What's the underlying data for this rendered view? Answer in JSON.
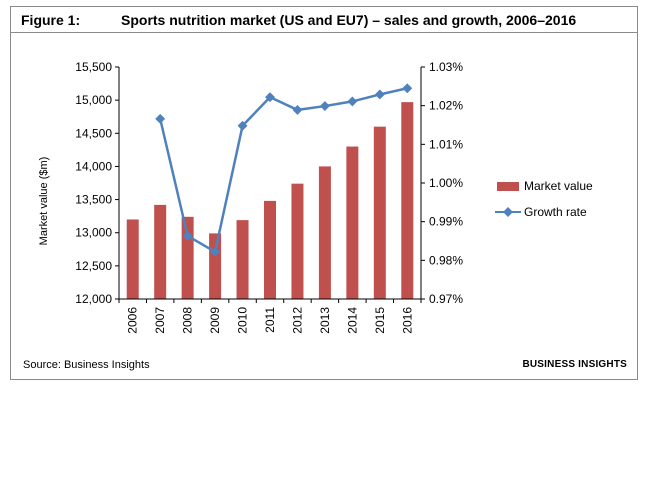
{
  "header": {
    "figure_label": "Figure 1:",
    "title": "Sports nutrition market (US and EU7) – sales and growth, 2006–2016"
  },
  "footer": {
    "source": "Source: Business Insights",
    "brand": "BUSINESS INSIGHTS"
  },
  "colors": {
    "bar": "#c0504d",
    "line": "#4f81bd",
    "grid": "#000000"
  },
  "chart_data": {
    "type": "bar",
    "title": "Sports nutrition market (US and EU7) – sales and growth, 2006–2016",
    "categories": [
      "2006",
      "2007",
      "2008",
      "2009",
      "2010",
      "2011",
      "2012",
      "2013",
      "2014",
      "2015",
      "2016"
    ],
    "ylabel": "Market value ($m)",
    "ylim": [
      12000,
      15500
    ],
    "yticks": [
      12000,
      12500,
      13000,
      13500,
      14000,
      14500,
      15000,
      15500
    ],
    "ytick_labels": [
      "12,000",
      "12,500",
      "13,000",
      "13,500",
      "14,000",
      "14,500",
      "15,000",
      "15,500"
    ],
    "y2lim": [
      0.97,
      1.03
    ],
    "y2ticks": [
      0.97,
      0.98,
      0.99,
      1.0,
      1.01,
      1.02,
      1.03
    ],
    "y2tick_labels": [
      "0.97%",
      "0.98%",
      "0.99%",
      "1.00%",
      "1.01%",
      "1.02%",
      "1.03%"
    ],
    "series": [
      {
        "name": "Market value",
        "type": "bar",
        "axis": "left",
        "values": [
          13200,
          13420,
          13240,
          12990,
          13190,
          13480,
          13740,
          14000,
          14300,
          14600,
          14970
        ]
      },
      {
        "name": "Growth rate",
        "type": "line",
        "axis": "right",
        "values": [
          null,
          1.0166,
          0.9863,
          0.9822,
          1.0148,
          1.0222,
          1.0189,
          1.0199,
          1.0211,
          1.0229,
          1.0245
        ]
      }
    ],
    "legend": [
      "Market value",
      "Growth rate"
    ],
    "legend_position": "right",
    "grid": false
  }
}
